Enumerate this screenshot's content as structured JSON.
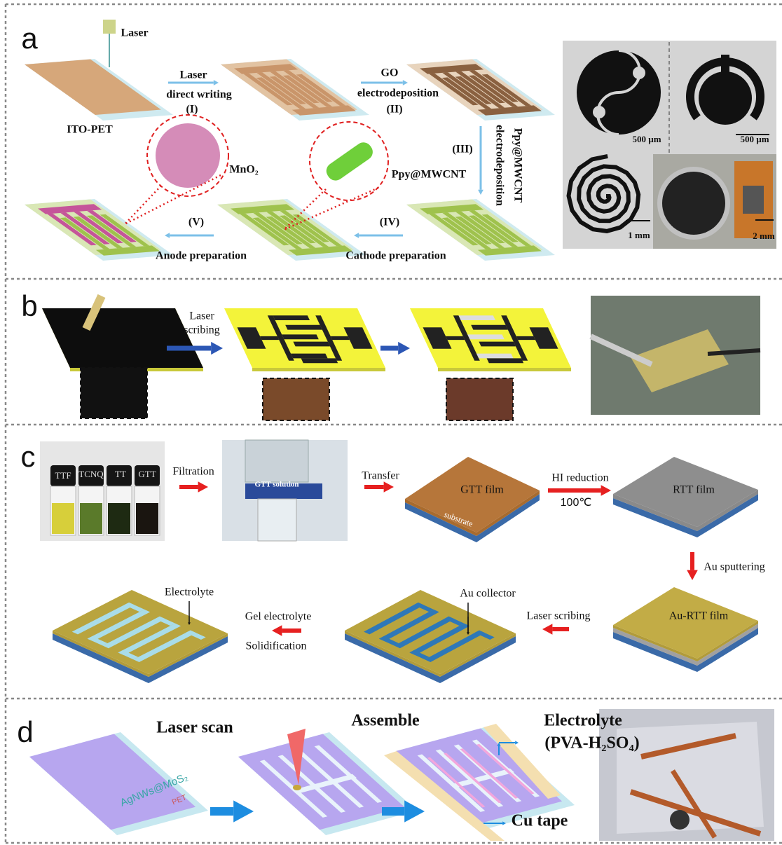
{
  "panel_a": {
    "label": "a",
    "laser": "Laser",
    "step_i": [
      "Laser",
      "direct writing",
      "(I)"
    ],
    "substrate": "ITO-PET",
    "step_ii": [
      "GO",
      "electrodeposition",
      "(II)"
    ],
    "step_iii": [
      "(III)",
      "Ppy@MWCNT",
      "electrodeposition"
    ],
    "mno2": "MnO₂",
    "ppy": "Ppy@MWCNT",
    "step_iv": [
      "(IV)",
      "Cathode preparation"
    ],
    "step_v": [
      "(V)",
      "Anode preparation"
    ],
    "scale_bars": [
      "500 µm",
      "500 µm",
      "1 mm",
      "2 mm"
    ]
  },
  "panel_b": {
    "label": "b",
    "step": [
      "Laser",
      "scribing"
    ]
  },
  "panel_c": {
    "label": "c",
    "vials": [
      "TTF",
      "TCNQ",
      "TT",
      "GTT"
    ],
    "filtration": "Filtration",
    "solution": "GTT solution",
    "transfer": "Transfer",
    "gtt_film": "GTT film",
    "substrate": "substrate",
    "reduction": [
      "HI reduction",
      "100℃"
    ],
    "rtt_film": "RTT film",
    "sputtering": "Au sputtering",
    "au_rtt_film": "Au-RTT film",
    "laser_scribing": "Laser scribing",
    "collector": "Au collector",
    "gel": [
      "Gel electrolyte",
      "Solidification"
    ],
    "electrolyte": "Electrolyte"
  },
  "panel_d": {
    "label": "d",
    "laser_scan": "Laser scan",
    "assemble": "Assemble",
    "electrolyte": [
      "Electrolyte",
      "(PVA-H₂SO₄)"
    ],
    "cu_tape": "Cu tape",
    "film": "AgNWs@MoS₂",
    "pet": "PET"
  }
}
